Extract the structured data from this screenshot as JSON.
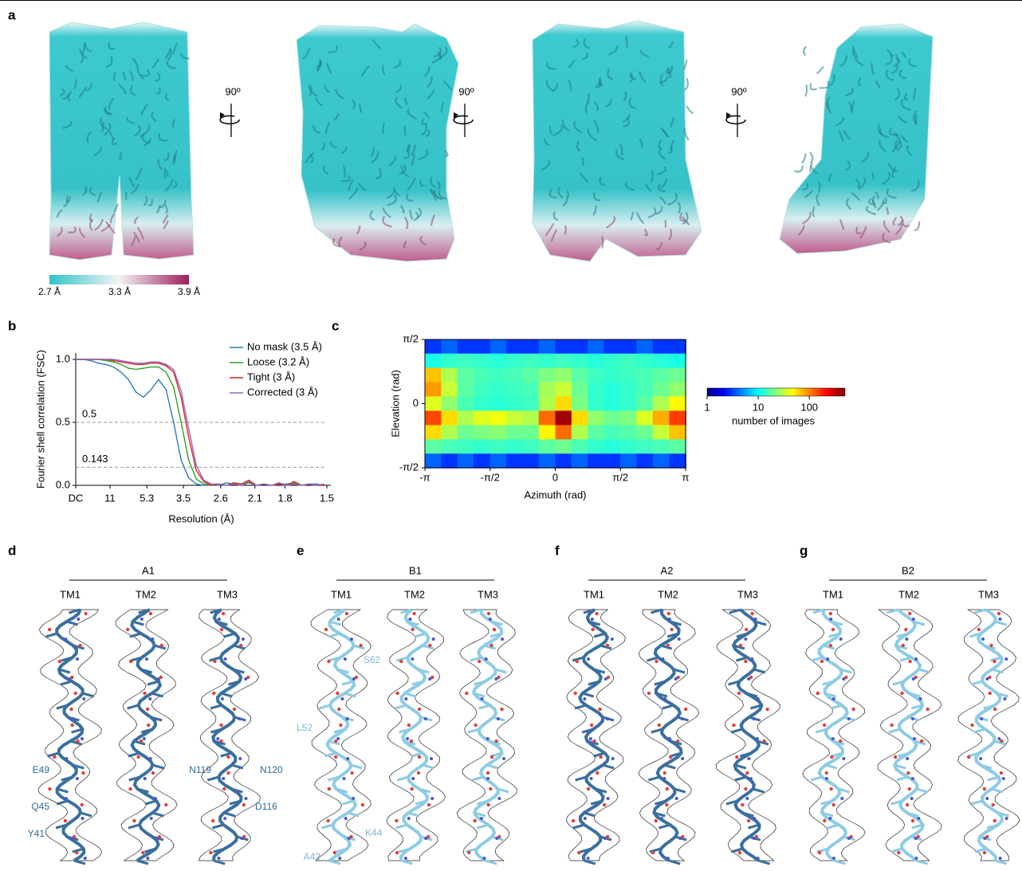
{
  "panel_a": {
    "label": "a",
    "rotations": [
      "90º",
      "90º",
      "90º"
    ],
    "colorbar_labels": [
      "2.7 Å",
      "3.3 Å",
      "3.9 Å"
    ]
  },
  "chart_data": [
    {
      "type": "line",
      "panel_label": "b",
      "xlabel": "Resolution (Å)",
      "ylabel": "Fourier shell correlation (FSC)",
      "xlim": [
        0,
        0.667
      ],
      "ylim": [
        0,
        1.05
      ],
      "xticks": [
        {
          "value": 0,
          "label": "DC"
        },
        {
          "value": 0.0909,
          "label": "11"
        },
        {
          "value": 0.189,
          "label": "5.3"
        },
        {
          "value": 0.286,
          "label": "3.5"
        },
        {
          "value": 0.385,
          "label": "2.6"
        },
        {
          "value": 0.476,
          "label": "2.1"
        },
        {
          "value": 0.556,
          "label": "1.8"
        },
        {
          "value": 0.667,
          "label": "1.5"
        }
      ],
      "yticks": [
        {
          "value": 0,
          "label": "0.0"
        },
        0.5,
        {
          "value": 1,
          "label": "1.0"
        }
      ],
      "thresholds": [
        0.5,
        0.143
      ],
      "x": [
        0,
        0.02,
        0.04,
        0.06,
        0.08,
        0.1,
        0.12,
        0.14,
        0.16,
        0.18,
        0.2,
        0.22,
        0.24,
        0.26,
        0.28,
        0.3,
        0.32,
        0.34,
        0.36,
        0.38,
        0.4,
        0.42,
        0.44,
        0.46,
        0.48,
        0.5,
        0.52,
        0.54,
        0.56,
        0.58,
        0.6,
        0.62,
        0.64,
        0.66
      ],
      "series": [
        {
          "name": "No mask (3.5 Å)",
          "color": "#2b7bba",
          "values": [
            1,
            1,
            0.99,
            0.97,
            0.96,
            0.94,
            0.9,
            0.84,
            0.74,
            0.7,
            0.76,
            0.84,
            0.76,
            0.5,
            0.2,
            0.06,
            0.01,
            0,
            0.01,
            0,
            0.02,
            0.01,
            0,
            0.02,
            0,
            0.01,
            0,
            0.01,
            0.01,
            0.02,
            0,
            0.01,
            0.01,
            0
          ]
        },
        {
          "name": "Loose (3.2 Å)",
          "color": "#2ca02c",
          "values": [
            1,
            1,
            1,
            1,
            0.99,
            0.98,
            0.96,
            0.93,
            0.92,
            0.93,
            0.94,
            0.94,
            0.9,
            0.78,
            0.5,
            0.2,
            0.05,
            0.01,
            0,
            0.01,
            0,
            0.02,
            0,
            0.03,
            0,
            0.01,
            0,
            0.01,
            0,
            0.02,
            0,
            0.01,
            0,
            0.01
          ]
        },
        {
          "name": "Tight (3 Å)",
          "color": "#d62728",
          "values": [
            1,
            1,
            1,
            1,
            1,
            0.99,
            0.98,
            0.97,
            0.96,
            0.96,
            0.97,
            0.97,
            0.95,
            0.9,
            0.7,
            0.38,
            0.12,
            0.03,
            0,
            0.01,
            0,
            0.02,
            0.01,
            0.04,
            0,
            0.01,
            0,
            0.01,
            0,
            0.03,
            0,
            0.01,
            0,
            0
          ]
        },
        {
          "name": "Corrected (3 Å)",
          "color": "#9467bd",
          "values": [
            1,
            1,
            1,
            1,
            1,
            1,
            0.99,
            0.98,
            0.97,
            0.97,
            0.98,
            0.98,
            0.96,
            0.92,
            0.75,
            0.45,
            0.16,
            0.04,
            0.01,
            0.01,
            0,
            0.01,
            0,
            0.02,
            0,
            0.01,
            0,
            0.02,
            0,
            0.01,
            0,
            0.01,
            0,
            0.01
          ]
        }
      ]
    },
    {
      "type": "heatmap",
      "panel_label": "c",
      "xlabel": "Azimuth (rad)",
      "ylabel": "Elevation (rad)",
      "xlim": [
        -3.1416,
        3.1416
      ],
      "ylim": [
        -1.5708,
        1.5708
      ],
      "xticks": [
        {
          "value": -3.1416,
          "label": "-π"
        },
        {
          "value": -1.5708,
          "label": "-π/2"
        },
        0,
        {
          "value": 1.5708,
          "label": "π/2"
        },
        {
          "value": 3.1416,
          "label": "π"
        }
      ],
      "yticks": [
        {
          "value": 1.5708,
          "label": "π/2"
        },
        0,
        {
          "value": -1.5708,
          "label": "-π/2"
        }
      ],
      "x": [
        -2.95,
        -2.55,
        -2.16,
        -1.77,
        -1.37,
        -0.98,
        -0.59,
        -0.2,
        0.2,
        0.59,
        0.98,
        1.37,
        1.77,
        2.16,
        2.55,
        2.95
      ],
      "y": [
        1.4,
        1.05,
        0.7,
        0.35,
        0,
        -0.35,
        -0.7,
        -1.05,
        -1.4
      ],
      "values": [
        [
          3,
          4,
          3,
          3,
          4,
          3,
          3,
          4,
          3,
          3,
          4,
          3,
          3,
          4,
          3,
          3
        ],
        [
          12,
          14,
          15,
          14,
          13,
          14,
          15,
          14,
          15,
          14,
          13,
          14,
          15,
          14,
          13,
          12
        ],
        [
          70,
          30,
          18,
          16,
          15,
          16,
          18,
          22,
          25,
          18,
          15,
          14,
          15,
          16,
          18,
          20
        ],
        [
          90,
          35,
          18,
          15,
          14,
          15,
          16,
          28,
          35,
          20,
          14,
          13,
          14,
          16,
          20,
          25
        ],
        [
          40,
          25,
          16,
          14,
          13,
          14,
          15,
          30,
          60,
          22,
          14,
          13,
          14,
          18,
          30,
          50
        ],
        [
          150,
          60,
          30,
          40,
          45,
          35,
          30,
          120,
          400,
          60,
          25,
          20,
          22,
          40,
          80,
          160
        ],
        [
          60,
          30,
          20,
          22,
          24,
          20,
          20,
          50,
          120,
          30,
          18,
          16,
          17,
          20,
          35,
          70
        ],
        [
          18,
          16,
          15,
          14,
          15,
          14,
          15,
          18,
          20,
          16,
          14,
          13,
          14,
          15,
          16,
          18
        ],
        [
          4,
          3,
          4,
          3,
          4,
          3,
          3,
          4,
          3,
          4,
          3,
          3,
          4,
          3,
          4,
          3
        ]
      ],
      "colorbar": {
        "lim": [
          1,
          500
        ],
        "ticks": [
          1,
          10,
          100
        ],
        "scale": "log",
        "colormap": "jet",
        "label": "number of images"
      }
    }
  ],
  "models": [
    {
      "label": "d",
      "title": "A1",
      "helices": [
        "TM1",
        "TM2",
        "TM3"
      ],
      "residues": [
        "E49",
        "Q45",
        "Y41",
        "N119",
        "N120",
        "D116"
      ]
    },
    {
      "label": "e",
      "title": "B1",
      "helices": [
        "TM1",
        "TM2",
        "TM3"
      ],
      "residues": [
        "S62",
        "L52",
        "K44",
        "A42"
      ]
    },
    {
      "label": "f",
      "title": "A2",
      "helices": [
        "TM1",
        "TM2",
        "TM3"
      ],
      "residues": []
    },
    {
      "label": "g",
      "title": "B2",
      "helices": [
        "TM1",
        "TM2",
        "TM3"
      ],
      "residues": []
    }
  ]
}
